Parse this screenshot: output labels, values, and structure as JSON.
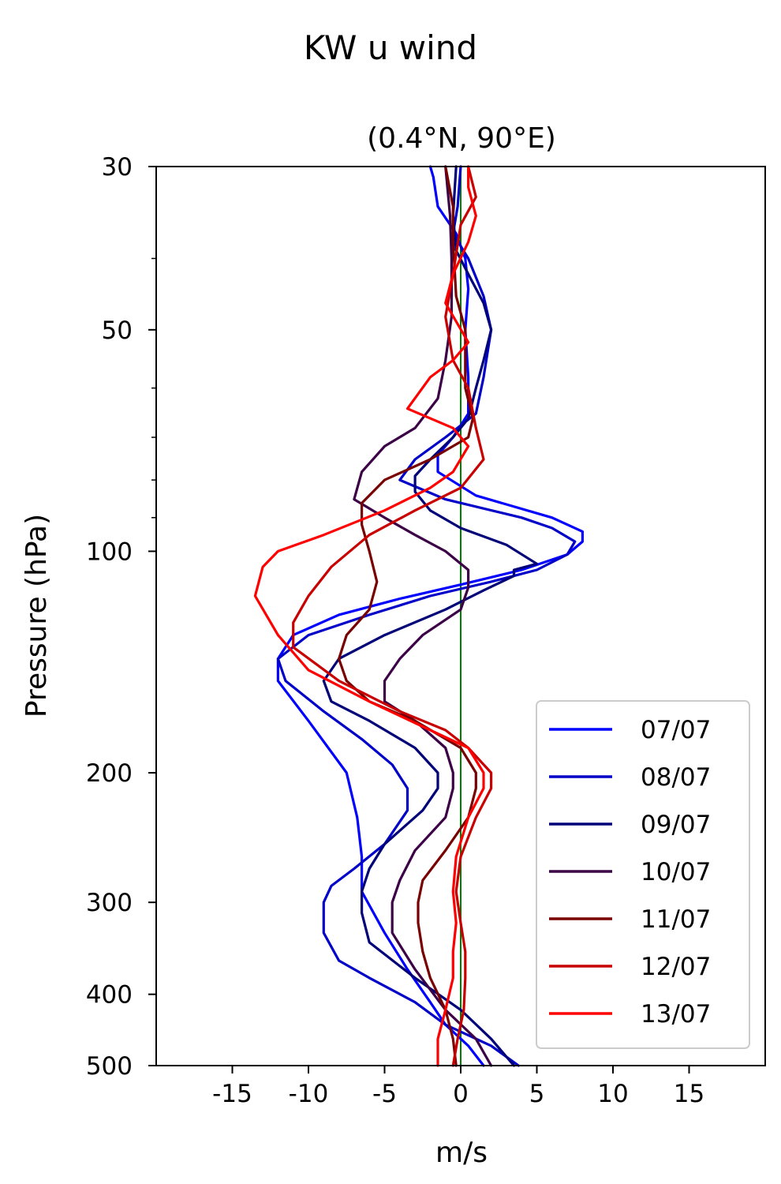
{
  "chart_data": {
    "type": "line",
    "title": "KW u wind",
    "subtitle": "(0.4°N, 90°E)",
    "xlabel": "m/s",
    "ylabel": "Pressure (hPa)",
    "xlim": [
      -20,
      20
    ],
    "ylim": [
      500,
      30
    ],
    "yscale": "log",
    "xticks": [
      -15,
      -10,
      -5,
      0,
      5,
      10,
      15
    ],
    "xtick_labels": [
      "-15",
      "-10",
      "-5",
      "0",
      "5",
      "10",
      "15"
    ],
    "yticks": [
      30,
      50,
      100,
      200,
      300,
      400,
      500
    ],
    "ytick_labels": [
      "30",
      "50",
      "100",
      "200",
      "300",
      "400",
      "500"
    ],
    "yminor_ticks": [
      40,
      60,
      70,
      80,
      90
    ],
    "zero_line": {
      "x": 0,
      "color": "#008000"
    },
    "legend_position": "bottom-right",
    "grid": false,
    "series": [
      {
        "name": "07/07",
        "color": "#0000ff",
        "points": [
          [
            1.5,
            500
          ],
          [
            0.5,
            470
          ],
          [
            -1,
            440
          ],
          [
            -2,
            410
          ],
          [
            -3.5,
            370
          ],
          [
            -5,
            330
          ],
          [
            -6.5,
            290
          ],
          [
            -6.5,
            260
          ],
          [
            -6.8,
            230
          ],
          [
            -7.5,
            200
          ],
          [
            -10,
            170
          ],
          [
            -12,
            150
          ],
          [
            -12,
            140
          ],
          [
            -11,
            130
          ],
          [
            -8,
            122
          ],
          [
            -4,
            116
          ],
          [
            0,
            111
          ],
          [
            4,
            106
          ],
          [
            7,
            101
          ],
          [
            8,
            97
          ],
          [
            8,
            94
          ],
          [
            6,
            90
          ],
          [
            1,
            84
          ],
          [
            -1.5,
            78
          ],
          [
            -1.5,
            74
          ],
          [
            -0.5,
            70
          ],
          [
            0.5,
            65
          ],
          [
            0.5,
            58
          ],
          [
            0.3,
            50
          ],
          [
            0.5,
            44
          ],
          [
            0.3,
            40
          ],
          [
            -0.3,
            37
          ],
          [
            -1.5,
            34
          ],
          [
            -1.8,
            31
          ],
          [
            -2,
            30
          ]
        ]
      },
      {
        "name": "08/07",
        "color": "#0000c8",
        "points": [
          [
            3.8,
            500
          ],
          [
            2,
            470
          ],
          [
            -1,
            440
          ],
          [
            -3,
            410
          ],
          [
            -6,
            380
          ],
          [
            -8,
            360
          ],
          [
            -9,
            330
          ],
          [
            -9,
            300
          ],
          [
            -8.5,
            285
          ],
          [
            -7,
            270
          ],
          [
            -5,
            250
          ],
          [
            -3.5,
            225
          ],
          [
            -3.5,
            210
          ],
          [
            -4.5,
            195
          ],
          [
            -6.5,
            180
          ],
          [
            -9,
            165
          ],
          [
            -11.5,
            150
          ],
          [
            -12,
            140
          ],
          [
            -10,
            130
          ],
          [
            -6,
            122
          ],
          [
            -2,
            115
          ],
          [
            2,
            110
          ],
          [
            5,
            106
          ],
          [
            7,
            101
          ],
          [
            7.5,
            97
          ],
          [
            6,
            93
          ],
          [
            4,
            90
          ],
          [
            -1,
            85
          ],
          [
            -4,
            80
          ],
          [
            -3,
            75
          ],
          [
            -1,
            70
          ],
          [
            1,
            65
          ],
          [
            1.5,
            58
          ],
          [
            2,
            50
          ],
          [
            1.5,
            45
          ],
          [
            0.5,
            40
          ],
          [
            -0.5,
            37
          ],
          [
            -0.2,
            34
          ],
          [
            0,
            30
          ]
        ]
      },
      {
        "name": "09/07",
        "color": "#000078",
        "points": [
          [
            3.5,
            500
          ],
          [
            2,
            460
          ],
          [
            0,
            420
          ],
          [
            -3,
            380
          ],
          [
            -6,
            340
          ],
          [
            -6.5,
            310
          ],
          [
            -6.5,
            290
          ],
          [
            -6,
            270
          ],
          [
            -5,
            250
          ],
          [
            -2.5,
            225
          ],
          [
            -1.5,
            210
          ],
          [
            -1.5,
            200
          ],
          [
            -3,
            185
          ],
          [
            -6,
            170
          ],
          [
            -8.5,
            160
          ],
          [
            -9,
            150
          ],
          [
            -8,
            140
          ],
          [
            -5,
            130
          ],
          [
            -1,
            120
          ],
          [
            1.5,
            113
          ],
          [
            3.5,
            108
          ],
          [
            3.5,
            106
          ],
          [
            5,
            104
          ],
          [
            3,
            98
          ],
          [
            0,
            93
          ],
          [
            -2,
            88
          ],
          [
            -3,
            83
          ],
          [
            -3,
            79
          ],
          [
            -2,
            75
          ],
          [
            -0.5,
            70
          ],
          [
            0.5,
            66
          ],
          [
            1,
            60
          ],
          [
            1.5,
            55
          ],
          [
            2,
            50
          ],
          [
            1.5,
            46
          ],
          [
            0.5,
            42
          ],
          [
            -0.3,
            39
          ],
          [
            -0.5,
            35
          ],
          [
            -0.3,
            30
          ]
        ]
      },
      {
        "name": "10/07",
        "color": "#3c0046",
        "points": [
          [
            2,
            500
          ],
          [
            1,
            460
          ],
          [
            -1,
            420
          ],
          [
            -3,
            370
          ],
          [
            -4.5,
            330
          ],
          [
            -4.5,
            300
          ],
          [
            -4,
            280
          ],
          [
            -3,
            255
          ],
          [
            -1,
            230
          ],
          [
            -0.5,
            210
          ],
          [
            -0.5,
            200
          ],
          [
            -1,
            185
          ],
          [
            -3,
            170
          ],
          [
            -5,
            160
          ],
          [
            -5,
            150
          ],
          [
            -4,
            140
          ],
          [
            -2.5,
            130
          ],
          [
            0,
            120
          ],
          [
            0.5,
            112
          ],
          [
            0.5,
            106
          ],
          [
            -1,
            100
          ],
          [
            -3,
            95
          ],
          [
            -5,
            90
          ],
          [
            -7,
            85
          ],
          [
            -6.5,
            78
          ],
          [
            -5,
            72
          ],
          [
            -3,
            68
          ],
          [
            -1.5,
            62
          ],
          [
            -1,
            55
          ],
          [
            -0.6,
            48
          ],
          [
            -0.6,
            40
          ],
          [
            -0.7,
            35
          ],
          [
            -1,
            30
          ]
        ]
      },
      {
        "name": "11/07",
        "color": "#780000",
        "points": [
          [
            -0.3,
            500
          ],
          [
            -0.5,
            460
          ],
          [
            -1,
            420
          ],
          [
            -2,
            380
          ],
          [
            -2.5,
            350
          ],
          [
            -2.8,
            320
          ],
          [
            -2.8,
            300
          ],
          [
            -2.5,
            280
          ],
          [
            -1,
            255
          ],
          [
            0.5,
            230
          ],
          [
            1,
            210
          ],
          [
            1,
            200
          ],
          [
            0,
            185
          ],
          [
            -3,
            170
          ],
          [
            -6,
            160
          ],
          [
            -7.5,
            150
          ],
          [
            -8,
            140
          ],
          [
            -7.5,
            130
          ],
          [
            -6,
            120
          ],
          [
            -5.5,
            110
          ],
          [
            -6,
            100
          ],
          [
            -6.5,
            92
          ],
          [
            -6.5,
            86
          ],
          [
            -5,
            80
          ],
          [
            -2,
            75
          ],
          [
            0.5,
            70
          ],
          [
            0.8,
            66
          ],
          [
            0.3,
            60
          ],
          [
            0.3,
            50
          ],
          [
            -0.3,
            45
          ],
          [
            -0.5,
            38
          ],
          [
            -0.5,
            34
          ],
          [
            -1,
            30
          ]
        ]
      },
      {
        "name": "12/07",
        "color": "#c80000",
        "points": [
          [
            -0.5,
            500
          ],
          [
            -0.2,
            460
          ],
          [
            0.2,
            420
          ],
          [
            0.3,
            380
          ],
          [
            0.3,
            350
          ],
          [
            0,
            320
          ],
          [
            -0.3,
            290
          ],
          [
            0,
            260
          ],
          [
            1,
            230
          ],
          [
            2,
            210
          ],
          [
            2,
            200
          ],
          [
            0.5,
            185
          ],
          [
            -1,
            175
          ],
          [
            -4,
            165
          ],
          [
            -8,
            150
          ],
          [
            -11,
            135
          ],
          [
            -11,
            125
          ],
          [
            -10,
            115
          ],
          [
            -8.5,
            105
          ],
          [
            -6,
            95
          ],
          [
            -3,
            88
          ],
          [
            0,
            82
          ],
          [
            1.5,
            75
          ],
          [
            1,
            68
          ],
          [
            0.5,
            60
          ],
          [
            -0.5,
            55
          ],
          [
            -1,
            48
          ],
          [
            -0.5,
            42
          ],
          [
            0,
            36
          ],
          [
            1,
            33
          ],
          [
            0.5,
            30
          ]
        ]
      },
      {
        "name": "13/07",
        "color": "#ff0000",
        "points": [
          [
            -1.5,
            500
          ],
          [
            -1.5,
            460
          ],
          [
            -1,
            420
          ],
          [
            -0.5,
            380
          ],
          [
            -0.5,
            350
          ],
          [
            -0.3,
            320
          ],
          [
            -0.5,
            290
          ],
          [
            -0.3,
            260
          ],
          [
            0.5,
            230
          ],
          [
            1.5,
            210
          ],
          [
            1.5,
            200
          ],
          [
            0.5,
            185
          ],
          [
            -2,
            175
          ],
          [
            -6,
            160
          ],
          [
            -10,
            145
          ],
          [
            -12,
            130
          ],
          [
            -13.5,
            115
          ],
          [
            -13,
            105
          ],
          [
            -12,
            100
          ],
          [
            -9,
            95
          ],
          [
            -5,
            88
          ],
          [
            -2,
            82
          ],
          [
            -0.5,
            78
          ],
          [
            0.5,
            72
          ],
          [
            -0.5,
            68
          ],
          [
            -3.5,
            64
          ],
          [
            -2,
            58
          ],
          [
            -0.5,
            55
          ],
          [
            0.5,
            52
          ],
          [
            -1,
            46
          ],
          [
            -0.5,
            42
          ],
          [
            0.5,
            38
          ],
          [
            1,
            35
          ],
          [
            0.5,
            32
          ],
          [
            0.5,
            30
          ]
        ]
      }
    ]
  }
}
